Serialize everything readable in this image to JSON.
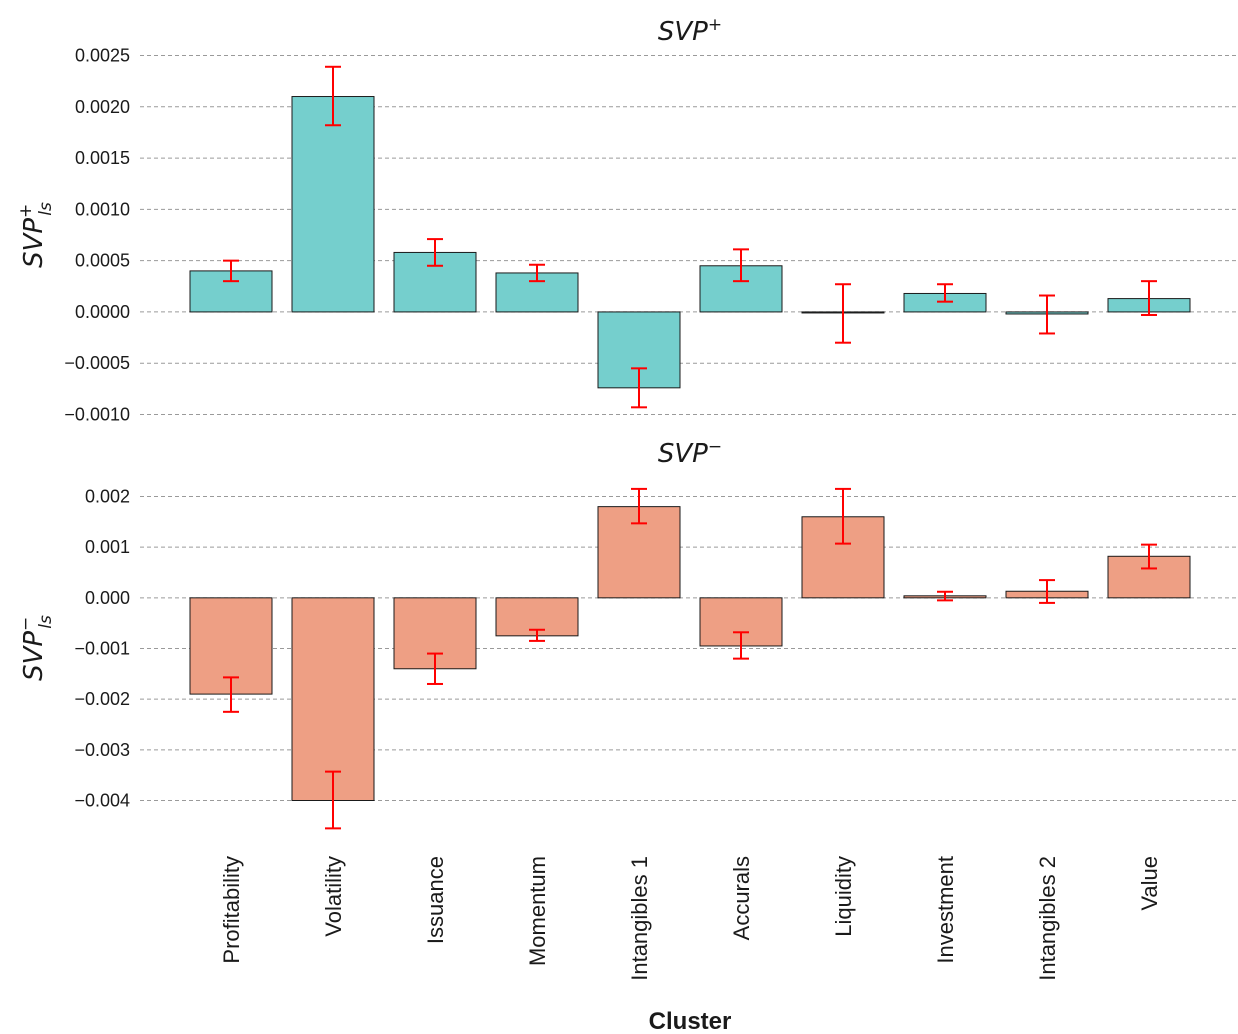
{
  "chart_data": [
    {
      "type": "bar",
      "title": "SVP",
      "title_sup": "+",
      "ylabel": "SVP",
      "ylabel_sup": "+",
      "ylabel_sub": "ls",
      "bar_color": "#75cfcd",
      "error_color": "#ff0000",
      "grid": "horizontal dashed",
      "ylim": [
        -0.001,
        0.0025
      ],
      "yticks": [
        "0.0025",
        "0.0020",
        "0.0015",
        "0.0010",
        "0.0005",
        "0.0000",
        "−0.0005",
        "−0.0010"
      ],
      "categories": [
        "Profitability",
        "Volatility",
        "Issuance",
        "Momentum",
        "Intangibles 1",
        "Accurals",
        "Liquidity",
        "Investment",
        "Intangibles 2",
        "Value"
      ],
      "values": [
        0.0004,
        0.0021,
        0.00058,
        0.00038,
        -0.00074,
        0.00045,
        -1e-05,
        0.00018,
        -2e-05,
        0.00013
      ],
      "err_low": [
        0.0003,
        0.00182,
        0.00045,
        0.0003,
        -0.00093,
        0.0003,
        -0.0003,
        0.0001,
        -0.00021,
        -3e-05
      ],
      "err_high": [
        0.0005,
        0.00239,
        0.00071,
        0.00046,
        -0.00055,
        0.00061,
        0.00027,
        0.00027,
        0.00016,
        0.0003
      ]
    },
    {
      "type": "bar",
      "title": "SVP",
      "title_sup": "−",
      "ylabel": "SVP",
      "ylabel_sup": "−",
      "ylabel_sub": "ls",
      "bar_color": "#ee9f84",
      "error_color": "#ff0000",
      "grid": "horizontal dashed",
      "ylim": [
        -0.0046,
        0.0023
      ],
      "yticks": [
        "0.002",
        "0.001",
        "0.000",
        "−0.001",
        "−0.002",
        "−0.003",
        "−0.004"
      ],
      "categories": [
        "Profitability",
        "Volatility",
        "Issuance",
        "Momentum",
        "Intangibles 1",
        "Accurals",
        "Liquidity",
        "Investment",
        "Intangibles 2",
        "Value"
      ],
      "values": [
        -0.0019,
        -0.004,
        -0.0014,
        -0.00075,
        0.0018,
        -0.00095,
        0.0016,
        4e-05,
        0.00013,
        0.00082
      ],
      "err_low": [
        -0.00225,
        -0.00455,
        -0.0017,
        -0.00085,
        0.00147,
        -0.0012,
        0.00107,
        -5e-05,
        -0.0001,
        0.00058
      ],
      "err_high": [
        -0.00157,
        -0.00343,
        -0.0011,
        -0.00063,
        0.00215,
        -0.00068,
        0.00215,
        0.00012,
        0.00035,
        0.00105
      ]
    }
  ],
  "xlabel": "Cluster",
  "xticks": [
    "Profitability",
    "Volatility",
    "Issuance",
    "Momentum",
    "Intangibles 1",
    "Accurals",
    "Liquidity",
    "Investment",
    "Intangibles 2",
    "Value"
  ]
}
